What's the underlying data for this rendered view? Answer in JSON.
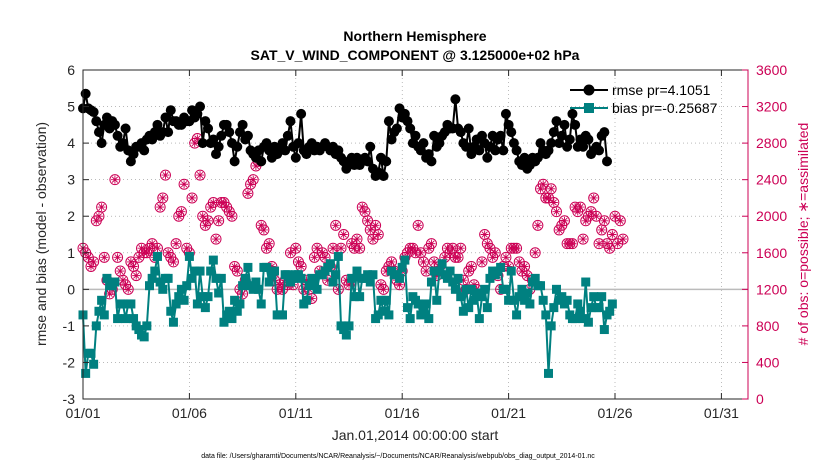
{
  "chart_data": {
    "type": "line",
    "title_line1": "Northern Hemisphere",
    "title_line2": "SAT_V_WIND_COMPONENT @ 3.125000e+02 hPa",
    "xlabel": "Jan.01,2014 00:00:00 start",
    "ylabel_left": "rmse and bias (model - observation)",
    "ylabel_right": "# of obs: o=possible; ∗=assimilated",
    "footer": "data file: /Users/gharamti/Documents/NCAR/Reanalysis/~/Documents/NCAR/Reanalysis/webpub/obs_diag_output_2014-01.nc",
    "xlim": [
      0,
      31.25
    ],
    "ylim_left": [
      -3,
      6
    ],
    "ylim_right": [
      0,
      3600
    ],
    "x_ticks": [
      0,
      5,
      10,
      15,
      20,
      25,
      30
    ],
    "x_tick_labels": [
      "01/01",
      "01/06",
      "01/11",
      "01/16",
      "01/21",
      "01/26",
      "01/31"
    ],
    "y_left_ticks": [
      -3,
      -2,
      -1,
      0,
      1,
      2,
      3,
      4,
      5,
      6
    ],
    "y_left_tick_labels": [
      "-3",
      "-2",
      "-1",
      "0",
      "1",
      "2",
      "3",
      "4",
      "5",
      "6"
    ],
    "y_right_ticks": [
      0,
      400,
      800,
      1200,
      1600,
      2000,
      2400,
      2800,
      3200,
      3600
    ],
    "y_right_tick_labels": [
      "0",
      "400",
      "800",
      "1200",
      "1600",
      "2000",
      "2400",
      "2800",
      "3200",
      "3600"
    ],
    "legend": [
      {
        "label": "rmse pr=4.1051",
        "color": "#000000",
        "marker": "circle"
      },
      {
        "label": "bias pr=-0.25687",
        "color": "#008080",
        "marker": "square"
      }
    ],
    "colors": {
      "rmse": "#000000",
      "bias": "#008080",
      "obs": "#cc0055",
      "zero_line": "#bbbbbb"
    },
    "x_step": 0.125,
    "series": [
      {
        "name": "rmse",
        "values": [
          4.95,
          5.35,
          4.95,
          4.9,
          4.85,
          4.6,
          4.3,
          4.0,
          4.5,
          4.7,
          4.4,
          4.6,
          4.5,
          4.2,
          3.9,
          4.0,
          4.4,
          3.8,
          3.5,
          3.7,
          3.9,
          3.9,
          4.0,
          3.8,
          4.1,
          4.2,
          4.1,
          4.3,
          4.5,
          4.2,
          4.3,
          4.7,
          4.3,
          4.9,
          4.6,
          4.6,
          4.5,
          4.5,
          4.7,
          4.6,
          4.6,
          4.9,
          4.7,
          4.8,
          5.0,
          4.0,
          4.6,
          4.4,
          4.0,
          4.1,
          3.7,
          3.9,
          4.2,
          4.5,
          4.5,
          4.3,
          4.0,
          3.5,
          3.9,
          4.3,
          4.5,
          4.1,
          4.2,
          3.8,
          3.7,
          3.6,
          3.8,
          3.5,
          3.9,
          4.0,
          3.8,
          3.6,
          3.9,
          3.7,
          3.8,
          4.0,
          3.8,
          4.2,
          4.6,
          3.9,
          3.6,
          4.0,
          4.8,
          3.8,
          3.7,
          3.9,
          4.0,
          3.8,
          3.9,
          3.8,
          3.9,
          4.0,
          3.9,
          3.8,
          3.9,
          3.7,
          3.8,
          3.6,
          3.5,
          3.3,
          3.5,
          3.6,
          3.4,
          3.6,
          3.4,
          3.5,
          3.6,
          3.5,
          3.9,
          3.3,
          3.1,
          3.2,
          3.6,
          3.1,
          3.5,
          4.6,
          4.1,
          4.3,
          4.4,
          4.95,
          4.7,
          4.8,
          4.6,
          4.4,
          4.0,
          4.2,
          3.9,
          3.8,
          4.0,
          3.6,
          3.7,
          3.5,
          4.2,
          3.9,
          4.0,
          4.2,
          4.3,
          4.5,
          4.4,
          4.4,
          5.2,
          4.4,
          4.3,
          4.0,
          3.9,
          4.4,
          3.7,
          3.9,
          4.1,
          3.8,
          4.2,
          4.0,
          3.6,
          3.9,
          4.2,
          3.8,
          4.1,
          4.2,
          3.8,
          4.8,
          4.5,
          4.3,
          4.0,
          3.8,
          3.5,
          3.4,
          3.6,
          3.3,
          3.4,
          3.6,
          3.5,
          3.6,
          4.0,
          3.8,
          3.7,
          3.8,
          4.0,
          4.3,
          4.6,
          4.0,
          4.2,
          4.5,
          3.9,
          4.1,
          4.8,
          4.5,
          3.9,
          4.1,
          3.9,
          4.2,
          4.1,
          3.7,
          3.8,
          3.9,
          3.8,
          4.2,
          4.3,
          3.5
        ]
      },
      {
        "name": "bias",
        "values": [
          -0.7,
          -2.3,
          -1.75,
          -1.75,
          -2.05,
          -1.0,
          -0.6,
          -0.3,
          -0.7,
          0.3,
          0.1,
          0.1,
          0.2,
          -0.8,
          -0.4,
          -0.4,
          -0.8,
          -0.4,
          -0.4,
          -0.8,
          -1.0,
          -1.1,
          -1.25,
          -1.3,
          -1.0,
          0.1,
          0.3,
          0.5,
          0.9,
          0.2,
          0.0,
          0.3,
          0.3,
          -0.6,
          -0.9,
          -0.4,
          -0.2,
          0.0,
          -0.3,
          0.1,
          0.9,
          0.3,
          0.5,
          -0.4,
          0.5,
          -0.2,
          -0.5,
          -0.2,
          0.5,
          0.8,
          0.3,
          -0.1,
          0.3,
          -0.9,
          -0.7,
          -0.6,
          -0.8,
          -0.3,
          -0.6,
          -0.4,
          0.1,
          0.3,
          0.6,
          0.1,
          0.0,
          0.2,
          0.0,
          -0.4,
          0.6,
          0.6,
          0.2,
          0.4,
          0.5,
          -0.7,
          -0.7,
          -0.7,
          0.4,
          0.4,
          0.2,
          0.3,
          0.4,
          0.4,
          0.3,
          -0.4,
          -0.3,
          0.1,
          0.3,
          0.2,
          0.0,
          0.4,
          0.4,
          0.5,
          0.6,
          0.7,
          0.2,
          0.4,
          0.9,
          -1.0,
          -1.1,
          -1.25,
          -1.0,
          0.3,
          -0.2,
          0.5,
          -0.2,
          0.3,
          0.3,
          0.4,
          0.2,
          0.4,
          -0.8,
          -0.7,
          -0.3,
          -0.6,
          -0.3,
          -0.7,
          0.5,
          0.4,
          0.4,
          0.3,
          0.6,
          0.8,
          -0.5,
          -0.8,
          -0.2,
          -0.3,
          -0.4,
          -0.7,
          -0.6,
          -0.4,
          -0.8,
          0.2,
          0.5,
          -0.3,
          0.5,
          0.7,
          0.4,
          0.3,
          0.5,
          0.2,
          0.0,
          0.3,
          -0.2,
          -0.6,
          0.0,
          -0.5,
          0.0,
          -0.3,
          -0.1,
          -0.8,
          -0.2,
          0.0,
          -0.5,
          0.3,
          0.5,
          0.4,
          0.5,
          0.6,
          0.0,
          0.0,
          -0.3,
          0.5,
          -0.3,
          -0.7,
          -0.2,
          0.0,
          -0.3,
          -0.1,
          -0.4,
          0.2,
          0.3,
          0.1,
          0.1,
          -0.3,
          -0.7,
          -2.3,
          -1.0,
          -0.5,
          0.0,
          -0.3,
          -0.2,
          -0.4,
          -0.3,
          -0.7,
          -0.8,
          -0.8,
          -0.4,
          -0.6,
          -0.8,
          0.2,
          -0.9,
          -0.5,
          -0.2,
          -0.5,
          -0.5,
          -0.2,
          -1.1,
          -0.7,
          -0.6,
          -0.4
        ]
      },
      {
        "name": "obs_possible",
        "values": [
          1650,
          1600,
          1550,
          1450,
          1500,
          1950,
          2000,
          2100,
          1550,
          1300,
          1150,
          1200,
          2400,
          1550,
          1400,
          1300,
          1250,
          1200,
          1500,
          1450,
          1350,
          1550,
          1650,
          1600,
          1600,
          1650,
          1700,
          1550,
          1650,
          2100,
          2200,
          2450,
          1600,
          1550,
          1500,
          1700,
          2000,
          2050,
          2350,
          1650,
          1600,
          2200,
          2800,
          2850,
          2450,
          2000,
          1900,
          1950,
          2100,
          2150,
          1750,
          1950,
          2150,
          2150,
          2100,
          2050,
          2000,
          1450,
          1400,
          1200,
          1150,
          1300,
          2250,
          2350,
          2400,
          2550,
          2600,
          1900,
          1850,
          1650,
          1700,
          1450,
          1300,
          1200,
          1250,
          1200,
          1300,
          1250,
          1600,
          1250,
          1650,
          1500,
          1450,
          1200,
          1300,
          1200,
          1100,
          1550,
          1650,
          1400,
          1600,
          1550,
          1300,
          1450,
          1650,
          1900,
          1200,
          1650,
          1800,
          1300,
          1250,
          1700,
          1650,
          1750,
          1650,
          2100,
          2050,
          1950,
          1850,
          1750,
          1900,
          1800,
          1250,
          1200,
          1400,
          1450,
          1500,
          1400,
          1300,
          1250,
          1400,
          1550,
          1600,
          1650,
          1650,
          1600,
          1900,
          1600,
          1500,
          1400,
          1650,
          1700,
          1500,
          1350,
          1450,
          1400,
          1550,
          1650,
          1600,
          1650,
          1550,
          1550,
          1650,
          1300,
          1200,
          1400,
          1450,
          1250,
          1200,
          1150,
          1500,
          1800,
          1700,
          1650,
          1550,
          1600,
          1350,
          1200,
          1450,
          1550,
          1450,
          1650,
          1650,
          1650,
          1500,
          1400,
          1450,
          1350,
          1200,
          1300,
          1600,
          1900,
          2300,
          2350,
          2200,
          2200,
          2300,
          2150,
          2050,
          1850,
          1900,
          1950,
          1700,
          1700,
          1700,
          2100,
          2050,
          2100,
          1750,
          1950,
          2000,
          2050,
          2200,
          2000,
          1700,
          1850,
          1950,
          1700,
          1650,
          1800,
          2000,
          1700,
          1950,
          1750
        ]
      },
      {
        "name": "obs_assimilated",
        "values": [
          1650,
          1600,
          1550,
          1450,
          1500,
          1950,
          2000,
          2100,
          1550,
          1300,
          1150,
          1200,
          2400,
          1550,
          1400,
          1300,
          1250,
          1200,
          1500,
          1450,
          1350,
          1550,
          1650,
          1600,
          1600,
          1650,
          1700,
          1550,
          1650,
          2100,
          2200,
          2450,
          1600,
          1550,
          1500,
          1700,
          2000,
          2050,
          2350,
          1650,
          1600,
          2200,
          2800,
          2850,
          2450,
          2000,
          1900,
          1950,
          2100,
          2150,
          1750,
          1950,
          2150,
          2150,
          2100,
          2050,
          2000,
          1450,
          1400,
          1200,
          1150,
          1300,
          2250,
          2350,
          2400,
          2550,
          2600,
          1900,
          1850,
          1650,
          1700,
          1450,
          1300,
          1200,
          1250,
          1200,
          1300,
          1250,
          1600,
          1250,
          1650,
          1500,
          1450,
          1200,
          1300,
          1200,
          1100,
          1550,
          1650,
          1400,
          1600,
          1550,
          1300,
          1450,
          1650,
          1900,
          1200,
          1650,
          1800,
          1300,
          1250,
          1700,
          1650,
          1750,
          1650,
          2100,
          2050,
          1950,
          1850,
          1750,
          1900,
          1800,
          1250,
          1200,
          1400,
          1450,
          1500,
          1400,
          1300,
          1250,
          1400,
          1550,
          1600,
          1650,
          1650,
          1600,
          1900,
          1600,
          1500,
          1400,
          1650,
          1700,
          1500,
          1350,
          1450,
          1400,
          1550,
          1650,
          1600,
          1650,
          1550,
          1550,
          1650,
          1300,
          1200,
          1400,
          1450,
          1250,
          1200,
          1150,
          1500,
          1800,
          1700,
          1650,
          1550,
          1600,
          1350,
          1200,
          1450,
          1550,
          1450,
          1650,
          1650,
          1650,
          1500,
          1400,
          1450,
          1350,
          1200,
          1300,
          1600,
          1900,
          2300,
          2350,
          2200,
          2200,
          2300,
          2150,
          2050,
          1850,
          1900,
          1950,
          1700,
          1700,
          1700,
          2100,
          2050,
          2100,
          1750,
          1950,
          2000,
          2050,
          2200,
          2000,
          1700,
          1850,
          1950,
          1700,
          1650,
          1800,
          2000,
          1700,
          1950,
          1750
        ]
      }
    ]
  }
}
